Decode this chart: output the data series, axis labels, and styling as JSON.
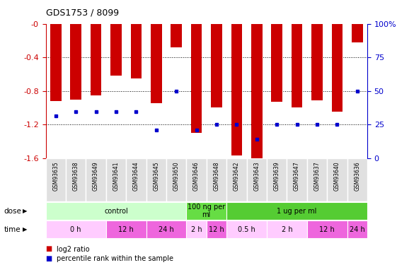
{
  "title": "GDS1753 / 8099",
  "samples": [
    "GSM93635",
    "GSM93638",
    "GSM93649",
    "GSM93641",
    "GSM93644",
    "GSM93645",
    "GSM93650",
    "GSM93646",
    "GSM93648",
    "GSM93642",
    "GSM93643",
    "GSM93639",
    "GSM93647",
    "GSM93637",
    "GSM93640",
    "GSM93636"
  ],
  "log2_ratio": [
    -0.92,
    -0.9,
    -0.85,
    -0.62,
    -0.65,
    -0.95,
    -0.28,
    -1.3,
    -1.0,
    -1.57,
    -1.6,
    -0.93,
    -1.0,
    -0.91,
    -1.05,
    -0.22
  ],
  "percentile_rank_log2": [
    -1.1,
    -1.05,
    -1.05,
    -1.05,
    -1.05,
    -1.27,
    -0.8,
    -1.27,
    -1.2,
    -1.2,
    -1.38,
    -1.2,
    -1.2,
    -1.2,
    -1.2,
    -0.8
  ],
  "ylim_left": [
    -1.6,
    0
  ],
  "ylim_right": [
    0,
    100
  ],
  "yticks_left": [
    0,
    -0.4,
    -0.8,
    -1.2,
    -1.6
  ],
  "yticks_right": [
    0,
    25,
    50,
    75,
    100
  ],
  "bar_color": "#cc0000",
  "percentile_color": "#0000cc",
  "bg_color": "#ffffff",
  "grid_color": "#000000",
  "left_tick_color": "#cc0000",
  "right_tick_color": "#0000cc",
  "dose_row": {
    "label": "dose",
    "groups": [
      {
        "label": "control",
        "start": 0,
        "end": 7,
        "color": "#ccffcc"
      },
      {
        "label": "100 ng per\nml",
        "start": 7,
        "end": 9,
        "color": "#66dd44"
      },
      {
        "label": "1 ug per ml",
        "start": 9,
        "end": 16,
        "color": "#55cc33"
      }
    ]
  },
  "time_row": {
    "label": "time",
    "groups": [
      {
        "label": "0 h",
        "start": 0,
        "end": 3,
        "color": "#ffccff"
      },
      {
        "label": "12 h",
        "start": 3,
        "end": 5,
        "color": "#ee66dd"
      },
      {
        "label": "24 h",
        "start": 5,
        "end": 7,
        "color": "#ee66dd"
      },
      {
        "label": "2 h",
        "start": 7,
        "end": 8,
        "color": "#ffccff"
      },
      {
        "label": "12 h",
        "start": 8,
        "end": 9,
        "color": "#ee66dd"
      },
      {
        "label": "0.5 h",
        "start": 9,
        "end": 11,
        "color": "#ffccff"
      },
      {
        "label": "2 h",
        "start": 11,
        "end": 13,
        "color": "#ffccff"
      },
      {
        "label": "12 h",
        "start": 13,
        "end": 15,
        "color": "#ee66dd"
      },
      {
        "label": "24 h",
        "start": 15,
        "end": 16,
        "color": "#ee66dd"
      }
    ]
  },
  "legend": [
    {
      "color": "#cc0000",
      "label": "log2 ratio"
    },
    {
      "color": "#0000cc",
      "label": "percentile rank within the sample"
    }
  ]
}
